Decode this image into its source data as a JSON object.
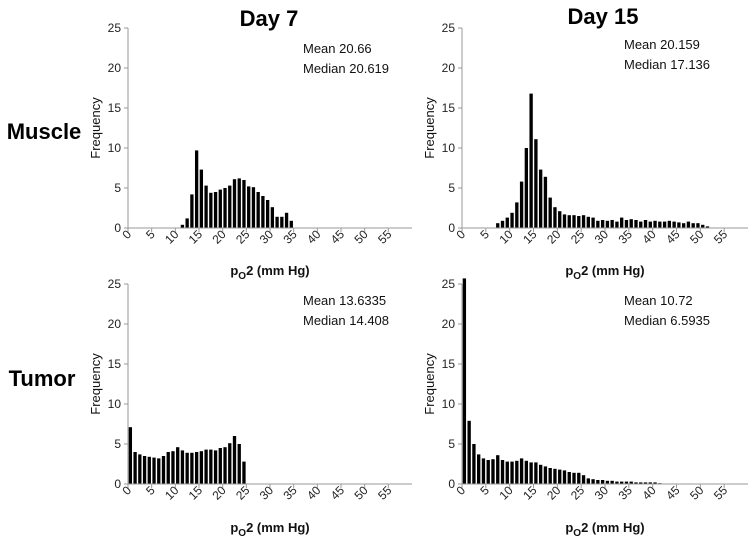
{
  "column_titles": [
    "Day 7",
    "Day 15"
  ],
  "row_titles": [
    "Muscle",
    "Tumor"
  ],
  "colors": {
    "bars": "#000000",
    "axes": "#999999"
  },
  "chart_data": [
    {
      "type": "bar",
      "title": "",
      "xlabel": "pO2 (mm Hg)",
      "xlabel_sub_index": 1,
      "ylabel": "Frequency",
      "xlim": [
        0,
        60
      ],
      "ylim": [
        0,
        25
      ],
      "xticks": [
        0,
        5,
        10,
        15,
        20,
        25,
        30,
        35,
        40,
        45,
        50,
        55
      ],
      "yticks": [
        0,
        5,
        10,
        15,
        20,
        25
      ],
      "grid": false,
      "bin_width": 1,
      "annotations": [
        "Mean 20.66",
        "Median 20.619"
      ],
      "x": [
        11,
        12,
        13,
        14,
        15,
        16,
        17,
        18,
        19,
        20,
        21,
        22,
        23,
        24,
        25,
        26,
        27,
        28,
        29,
        30,
        31,
        32,
        33,
        34,
        35
      ],
      "values": [
        0.4,
        1.2,
        4.2,
        9.7,
        7.3,
        5.3,
        4.4,
        4.5,
        4.8,
        5.0,
        5.3,
        6.1,
        6.2,
        6.0,
        5.2,
        5.1,
        4.5,
        4.0,
        3.5,
        2.6,
        1.4,
        1.4,
        1.9,
        0.9,
        0
      ]
    },
    {
      "type": "bar",
      "title": "",
      "xlabel": "pO2 (mm Hg)",
      "xlabel_sub_index": 1,
      "ylabel": "Frequency",
      "xlim": [
        0,
        60
      ],
      "ylim": [
        0,
        25
      ],
      "xticks": [
        0,
        5,
        10,
        15,
        20,
        25,
        30,
        35,
        40,
        45,
        50,
        55
      ],
      "yticks": [
        0,
        5,
        10,
        15,
        20,
        25
      ],
      "grid": false,
      "bin_width": 1,
      "annotations": [
        "Mean 20.159",
        "Median 17.136"
      ],
      "x": [
        7,
        8,
        9,
        10,
        11,
        12,
        13,
        14,
        15,
        16,
        17,
        18,
        19,
        20,
        21,
        22,
        23,
        24,
        25,
        26,
        27,
        28,
        29,
        30,
        31,
        32,
        33,
        34,
        35,
        36,
        37,
        38,
        39,
        40,
        41,
        42,
        43,
        44,
        45,
        46,
        47,
        48,
        49,
        50,
        51
      ],
      "values": [
        0.6,
        0.9,
        1.3,
        1.9,
        3.2,
        5.8,
        10.0,
        16.8,
        11.1,
        7.3,
        6.4,
        3.8,
        2.6,
        2.1,
        1.7,
        1.6,
        1.6,
        1.5,
        1.6,
        1.4,
        1.3,
        0.9,
        1.0,
        0.9,
        1.0,
        0.8,
        1.3,
        1.0,
        1.1,
        1.0,
        0.8,
        1.0,
        0.8,
        0.9,
        0.8,
        0.8,
        0.9,
        0.8,
        0.7,
        0.6,
        0.8,
        0.6,
        0.6,
        0.4,
        0.2
      ]
    },
    {
      "type": "bar",
      "title": "",
      "xlabel": "pO2 (mm Hg)",
      "xlabel_sub_index": 1,
      "ylabel": "Frequency",
      "xlim": [
        0,
        60
      ],
      "ylim": [
        0,
        25
      ],
      "xticks": [
        0,
        5,
        10,
        15,
        20,
        25,
        30,
        35,
        40,
        45,
        50,
        55
      ],
      "yticks": [
        0,
        5,
        10,
        15,
        20,
        25
      ],
      "grid": false,
      "bin_width": 1,
      "annotations": [
        "Mean 13.6335",
        "Median 14.408"
      ],
      "x": [
        0,
        1,
        2,
        3,
        4,
        5,
        6,
        7,
        8,
        9,
        10,
        11,
        12,
        13,
        14,
        15,
        16,
        17,
        18,
        19,
        20,
        21,
        22,
        23,
        24
      ],
      "values": [
        7.1,
        4.0,
        3.7,
        3.5,
        3.4,
        3.3,
        3.2,
        3.5,
        4.0,
        4.1,
        4.6,
        4.2,
        3.9,
        3.9,
        4.0,
        4.1,
        4.3,
        4.3,
        4.2,
        4.5,
        4.6,
        5.1,
        6.0,
        5.0,
        2.8
      ]
    },
    {
      "type": "bar",
      "title": "",
      "xlabel": "pO2 (mm Hg)",
      "xlabel_sub_index": 1,
      "ylabel": "Frequency",
      "xlim": [
        0,
        60
      ],
      "ylim": [
        0,
        25
      ],
      "xticks": [
        0,
        5,
        10,
        15,
        20,
        25,
        30,
        35,
        40,
        45,
        50,
        55
      ],
      "yticks": [
        0,
        5,
        10,
        15,
        20,
        25
      ],
      "grid": false,
      "bin_width": 1,
      "annotations": [
        "Mean 10.72",
        "Median 6.5935"
      ],
      "x": [
        0,
        1,
        2,
        3,
        4,
        5,
        6,
        7,
        8,
        9,
        10,
        11,
        12,
        13,
        14,
        15,
        16,
        17,
        18,
        19,
        20,
        21,
        22,
        23,
        24,
        25,
        26,
        27,
        28,
        29,
        30,
        31,
        32,
        33,
        34,
        35,
        36,
        37,
        38,
        39,
        40,
        41
      ],
      "values": [
        25.7,
        7.9,
        5.0,
        3.7,
        3.2,
        3.0,
        3.1,
        3.6,
        3.0,
        2.8,
        2.8,
        2.9,
        3.2,
        2.9,
        2.7,
        2.7,
        2.4,
        2.2,
        2.0,
        1.9,
        1.8,
        1.7,
        1.5,
        1.4,
        1.4,
        1.1,
        0.7,
        0.6,
        0.5,
        0.5,
        0.4,
        0.4,
        0.3,
        0.3,
        0.3,
        0.3,
        0.2,
        0.2,
        0.2,
        0.2,
        0.2,
        0.1
      ]
    }
  ]
}
